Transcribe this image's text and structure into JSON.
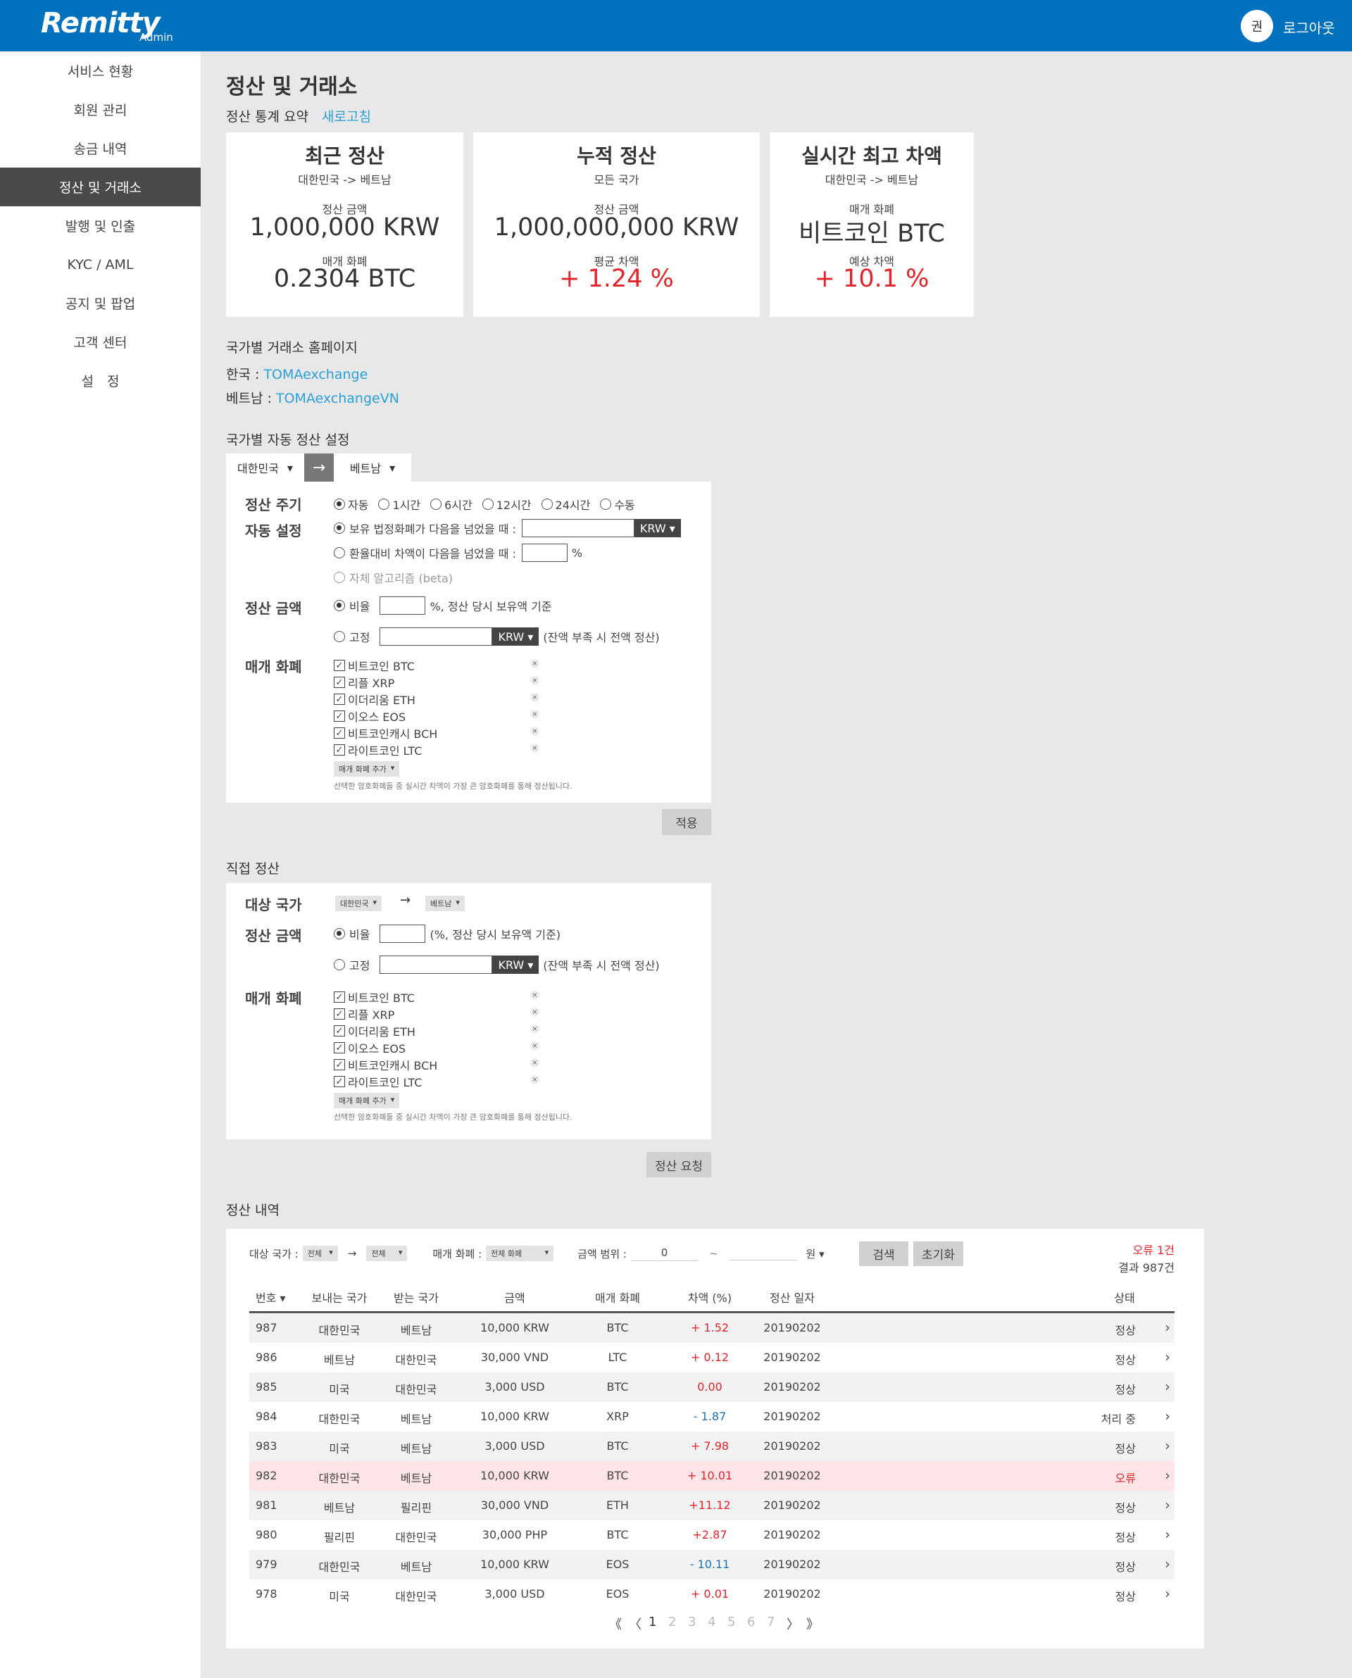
{
  "header": {
    "logo": "Remitty",
    "logo_sub": "Admin",
    "avatar": "권",
    "logout": "로그아웃",
    "brand_color": "#0071bc"
  },
  "sidebar": {
    "items": [
      {
        "label": "서비스 현황"
      },
      {
        "label": "회원 관리"
      },
      {
        "label": "송금 내역"
      },
      {
        "label": "정산 및 거래소",
        "active": true
      },
      {
        "label": "발행 및 인출"
      },
      {
        "label": "KYC / AML"
      },
      {
        "label": "공지 및 팝업"
      },
      {
        "label": "고객 센터"
      },
      {
        "label": "설　정"
      }
    ]
  },
  "page": {
    "title": "정산 및 거래소",
    "summary_label": "정산 통계 요약",
    "refresh": "새로고침"
  },
  "cards": [
    {
      "title": "최근 정산",
      "sub": "대한민국 -> 베트남",
      "label1": "정산 금액",
      "value1": "1,000,000 KRW",
      "label2": "매개 화폐",
      "value2": "0.2304 BTC"
    },
    {
      "title": "누적 정산",
      "sub": "모든 국가",
      "label1": "정산 금액",
      "value1": "1,000,000,000 KRW",
      "label2": "평균 차액",
      "value2": "+ 1.24 %"
    },
    {
      "title": "실시간 최고 차액",
      "sub": "대한민국 -> 베트남",
      "label1": "매개 화폐",
      "value1": "비트코인 BTC",
      "label2": "예상 차액",
      "value2": "+ 10.1 %"
    }
  ],
  "exchanges": {
    "title": "국가별 거래소 홈페이지",
    "items": [
      {
        "country": "한국 : ",
        "link": "TOMAexchange"
      },
      {
        "country": "베트남 : ",
        "link": "TOMAexchangeVN"
      }
    ]
  },
  "auto": {
    "title": "국가별 자동 정산 설정",
    "from": "대한민국",
    "to": "베트남",
    "cycle_label": "정산 주기",
    "cycle_options": [
      "자동",
      "1시간",
      "6시간",
      "12시간",
      "24시간",
      "수동"
    ],
    "auto_label": "자동 설정",
    "auto_opt1": "보유 법정화폐가 다음을 넘었을 때 :",
    "auto_opt1_unit": "KRW ▾",
    "auto_opt2": "환율대비 차액이 다음을 넘었을 때 :",
    "auto_opt2_unit": "%",
    "auto_opt3": "자체 알고리즘 (beta)",
    "amount_label": "정산 금액",
    "ratio": "비율",
    "ratio_suffix": "%, 정산 당시 보유액 기준",
    "fixed": "고정",
    "fixed_unit": "KRW ▾",
    "fixed_suffix": "(잔액 부족 시 전액 정산)",
    "currency_label": "매개 화폐",
    "currencies": [
      "비트코인 BTC",
      "리플 XRP",
      "이더리움 ETH",
      "이오스 EOS",
      "비트코인캐시 BCH",
      "라이트코인 LTC"
    ],
    "add_currency": "매개 화폐 추가",
    "note": "선택한 암호화폐들 중 실시간 차액이 가장 큰 암호화폐를 통해 정산됩니다.",
    "apply": "적용"
  },
  "direct": {
    "title": "직접 정산",
    "target_label": "대상 국가",
    "from": "대한민국",
    "to": "베트남",
    "amount_label": "정산 금액",
    "ratio": "비율",
    "ratio_suffix": "(%, 정산 당시 보유액 기준)",
    "fixed": "고정",
    "fixed_unit": "KRW ▾",
    "fixed_suffix": "(잔액 부족 시 전액 정산)",
    "currency_label": "매개 화폐",
    "currencies": [
      "비트코인 BTC",
      "리플 XRP",
      "이더리움 ETH",
      "이오스 EOS",
      "비트코인캐시 BCH",
      "라이트코인 LTC"
    ],
    "add_currency": "매개 화폐 추가",
    "note": "선택한 암호화폐들 중 실시간 차액이 가장 큰 암호화폐를 통해 정산됩니다.",
    "request": "정산 요청"
  },
  "history": {
    "title": "정산 내역",
    "filter": {
      "country_label": "대상 국가 :",
      "from": "전체",
      "to": "전체",
      "currency_label": "매개 화폐 :",
      "currency": "전체 화폐",
      "range_label": "금액 범위 :",
      "min": "0",
      "tilde": "~",
      "max": "",
      "unit": "원 ▾",
      "search": "검색",
      "reset": "초기화"
    },
    "errors": "오류 1건",
    "results": "결과 987건",
    "columns": [
      "번호 ▾",
      "보내는 국가",
      "받는 국가",
      "금액",
      "매개 화폐",
      "차액 (%)",
      "정산 일자",
      "상태"
    ],
    "rows": [
      {
        "no": "987",
        "from": "대한민국",
        "to": "베트남",
        "amount": "10,000 KRW",
        "currency": "BTC",
        "diff": "+ 1.52",
        "date": "20190202",
        "status": "정상"
      },
      {
        "no": "986",
        "from": "베트남",
        "to": "대한민국",
        "amount": "30,000 VND",
        "currency": "LTC",
        "diff": "+ 0.12",
        "date": "20190202",
        "status": "정상"
      },
      {
        "no": "985",
        "from": "미국",
        "to": "대한민국",
        "amount": "3,000 USD",
        "currency": "BTC",
        "diff": "0.00",
        "date": "20190202",
        "status": "정상"
      },
      {
        "no": "984",
        "from": "대한민국",
        "to": "베트남",
        "amount": "10,000 KRW",
        "currency": "XRP",
        "diff": "- 1.87",
        "date": "20190202",
        "status": "처리 중"
      },
      {
        "no": "983",
        "from": "미국",
        "to": "베트남",
        "amount": "3,000 USD",
        "currency": "BTC",
        "diff": "+ 7.98",
        "date": "20190202",
        "status": "정상"
      },
      {
        "no": "982",
        "from": "대한민국",
        "to": "베트남",
        "amount": "10,000 KRW",
        "currency": "BTC",
        "diff": "+ 10.01",
        "date": "20190202",
        "status": "오류",
        "error": true
      },
      {
        "no": "981",
        "from": "베트남",
        "to": "필리핀",
        "amount": "30,000 VND",
        "currency": "ETH",
        "diff": "+11.12",
        "date": "20190202",
        "status": "정상"
      },
      {
        "no": "980",
        "from": "필리핀",
        "to": "대한민국",
        "amount": "30,000 PHP",
        "currency": "BTC",
        "diff": "+2.87",
        "date": "20190202",
        "status": "정상"
      },
      {
        "no": "979",
        "from": "대한민국",
        "to": "베트남",
        "amount": "10,000 KRW",
        "currency": "EOS",
        "diff": "- 10.11",
        "date": "20190202",
        "status": "정상"
      },
      {
        "no": "978",
        "from": "미국",
        "to": "대한민국",
        "amount": "3,000 USD",
        "currency": "EOS",
        "diff": "+ 0.01",
        "date": "20190202",
        "status": "정상"
      }
    ],
    "pagination": {
      "first": "《",
      "prev": "〈",
      "pages": [
        "1",
        "2",
        "3",
        "4",
        "5",
        "6",
        "7"
      ],
      "current": "1",
      "next": "〉",
      "last": "》"
    }
  },
  "colors": {
    "positive": "#e0242b",
    "negative": "#1a73b8",
    "error_row": "#fde5e7",
    "alt_row": "#f2f2f2",
    "link": "#2a9fd8",
    "active_sidebar": "#4a4a4a"
  }
}
